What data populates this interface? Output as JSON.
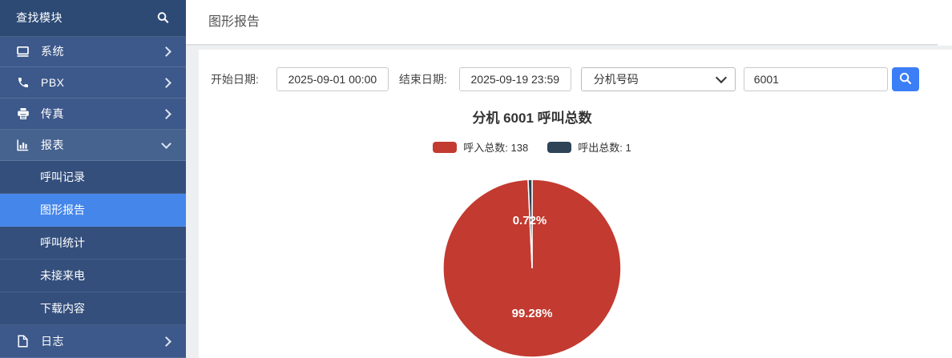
{
  "sidebar": {
    "search_label": "查找模块",
    "items": [
      {
        "label": "系统",
        "icon": "monitor-icon"
      },
      {
        "label": "PBX",
        "icon": "phone-icon"
      },
      {
        "label": "传真",
        "icon": "fax-printer-icon"
      },
      {
        "label": "报表",
        "icon": "bar-chart-icon",
        "expanded": true,
        "children": [
          {
            "label": "呼叫记录"
          },
          {
            "label": "图形报告",
            "selected": true
          },
          {
            "label": "呼叫统计"
          },
          {
            "label": "未接来电"
          },
          {
            "label": "下载内容"
          }
        ]
      },
      {
        "label": "日志",
        "icon": "document-icon"
      }
    ]
  },
  "header": {
    "title": "图形报告"
  },
  "filters": {
    "start_label": "开始日期:",
    "start_value": "2025-09-01 00:00",
    "end_label": "结束日期:",
    "end_value": "2025-09-19 23:59",
    "type_value": "分机号码",
    "number_value": "6001"
  },
  "chart_data": {
    "type": "pie",
    "title": "分机 6001 呼叫总数",
    "series": [
      {
        "name": "呼入总数",
        "value": 138,
        "percent": "99.28%",
        "color": "#c23a30"
      },
      {
        "name": "呼出总数",
        "value": 1,
        "percent": "0.72%",
        "color": "#2e4356"
      }
    ],
    "legend": [
      "呼入总数: 138",
      "呼出总数: 1"
    ],
    "legend_position": "top",
    "start_angle": "top",
    "direction": "clockwise"
  },
  "colors": {
    "sidebar_bg": "#3d598b",
    "sidebar_top_bg": "#2d4a75",
    "submenu_bg": "#344f7c",
    "selected_item": "#4486ea",
    "button_blue": "#3b7ef6",
    "pie_red": "#c23a30",
    "pie_dark": "#2e4356"
  }
}
